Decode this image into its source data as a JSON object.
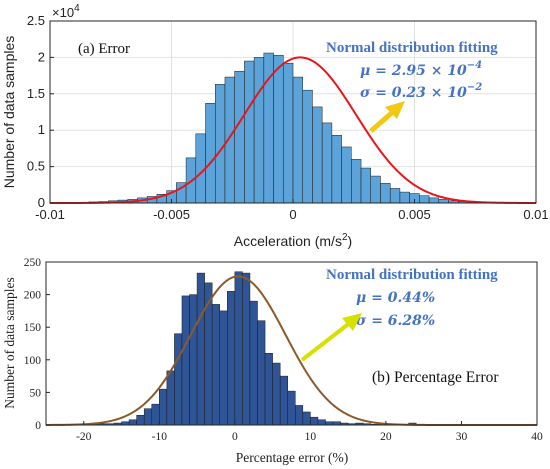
{
  "chart_data": [
    {
      "type": "bar",
      "panel_label": "(a) Error",
      "xlabel": "Acceleration (m/s",
      "xlabel_sup": "2",
      "xlabel_close": ")",
      "ylabel": "Number of data samples",
      "exponent_base": "×10",
      "exponent_power": "4",
      "xlim": [
        -0.01,
        0.01
      ],
      "ylim": [
        0,
        2.5
      ],
      "xticks": [
        "-0.01",
        "-0.005",
        "0",
        "0.005",
        "0.01"
      ],
      "xtick_values": [
        -0.01,
        -0.005,
        0,
        0.005,
        0.01
      ],
      "yticks": [
        "0",
        "0.5",
        "1",
        "1.5",
        "2",
        "2.5"
      ],
      "ytick_values": [
        0,
        0.5,
        1,
        1.5,
        2,
        2.5
      ],
      "grid": true,
      "bar_color": "#5ba3d8",
      "fit_color": "#e8161b",
      "bin_width": 0.0004,
      "bin_start": -0.0092,
      "values": [
        0.005,
        0.01,
        0.015,
        0.02,
        0.03,
        0.04,
        0.05,
        0.07,
        0.09,
        0.12,
        0.17,
        0.28,
        0.62,
        0.95,
        1.37,
        1.63,
        1.73,
        1.81,
        1.95,
        2.0,
        2.06,
        2.03,
        1.92,
        1.73,
        1.55,
        1.32,
        1.1,
        0.93,
        0.77,
        0.6,
        0.48,
        0.37,
        0.27,
        0.2,
        0.15,
        0.13,
        0.1,
        0.07,
        0.05,
        0.03,
        0.02,
        0.015,
        0.01,
        0.01,
        0.005
      ],
      "fit": {
        "mu": 0.000295,
        "sigma": 0.0023,
        "peak": 2.0
      },
      "annotation": {
        "title": "Normal distribution fitting",
        "mu_text": "μ = 2.95 × 10",
        "mu_exp": "−4",
        "sigma_text": "σ = 0.23 × 10",
        "sigma_exp": "−2"
      },
      "arrow_color": "#f2c811"
    },
    {
      "type": "bar",
      "panel_label": "(b) Percentage Error",
      "xlabel": "Percentage error (%)",
      "ylabel": "Number of data samples",
      "xlim": [
        -25,
        40
      ],
      "ylim": [
        0,
        250
      ],
      "xticks": [
        "-20",
        "-10",
        "0",
        "10",
        "20",
        "30",
        "40"
      ],
      "xtick_values": [
        -20,
        -10,
        0,
        10,
        20,
        30,
        40
      ],
      "yticks": [
        "0",
        "50",
        "100",
        "150",
        "200",
        "250"
      ],
      "ytick_values": [
        0,
        50,
        100,
        150,
        200,
        250
      ],
      "grid": false,
      "bar_color": "#2f5597",
      "fit_color": "#8b5a2b",
      "bin_width": 1,
      "bin_start": -20,
      "values": [
        1,
        1,
        2,
        2,
        3,
        5,
        8,
        15,
        25,
        32,
        55,
        83,
        140,
        198,
        200,
        233,
        218,
        185,
        175,
        205,
        235,
        233,
        190,
        160,
        110,
        95,
        75,
        52,
        30,
        20,
        12,
        8,
        5,
        5,
        3,
        2,
        3,
        2,
        1,
        1,
        2,
        1,
        1,
        3,
        1,
        1,
        1,
        1,
        1,
        0,
        1,
        0,
        0,
        1,
        0,
        0,
        0,
        1
      ],
      "fit": {
        "mu": 0.44,
        "sigma": 6.28,
        "peak": 228
      },
      "annotation": {
        "title": "Normal distribution fitting",
        "mu_text": "μ = 0.44%",
        "sigma_text": "σ = 6.28%"
      },
      "arrow_color": "#d8e000"
    }
  ]
}
